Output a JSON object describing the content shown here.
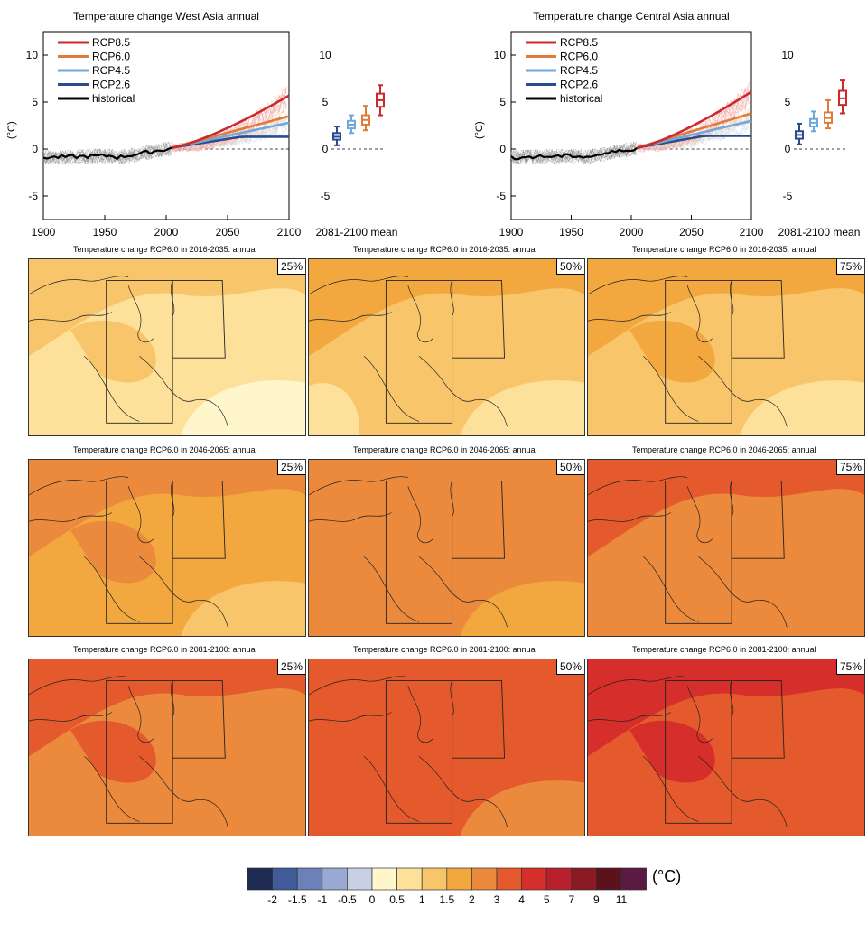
{
  "timeseries": [
    {
      "title": "Temperature change West Asia annual",
      "ylabel": "(°C)",
      "yticks": [
        "10",
        "5",
        "0",
        "-5"
      ],
      "xticks": [
        "1900",
        "1950",
        "2000",
        "2050",
        "2100"
      ],
      "box_label": "2081-2100 mean",
      "legend": [
        "RCP8.5",
        "RCP6.0",
        "RCP4.5",
        "RCP2.6",
        "historical"
      ],
      "end_values": {
        "RCP8.5": 5.7,
        "RCP6.0": 3.5,
        "RCP4.5": 2.8,
        "RCP2.6": 1.3
      },
      "boxes": [
        {
          "name": "RCP2.6",
          "low": 0.4,
          "q1": 1.0,
          "median": 1.3,
          "q3": 1.7,
          "high": 2.4
        },
        {
          "name": "RCP4.5",
          "low": 1.7,
          "q1": 2.2,
          "median": 2.6,
          "q3": 3.0,
          "high": 3.6
        },
        {
          "name": "RCP6.0",
          "low": 2.0,
          "q1": 2.6,
          "median": 3.1,
          "q3": 3.6,
          "high": 4.6
        },
        {
          "name": "RCP8.5",
          "low": 3.6,
          "q1": 4.5,
          "median": 5.2,
          "q3": 5.9,
          "high": 6.8
        }
      ]
    },
    {
      "title": "Temperature change Central Asia annual",
      "ylabel": "(°C)",
      "yticks": [
        "10",
        "5",
        "0",
        "-5"
      ],
      "xticks": [
        "1900",
        "1950",
        "2000",
        "2050",
        "2100"
      ],
      "box_label": "2081-2100 mean",
      "legend": [
        "RCP8.5",
        "RCP6.0",
        "RCP4.5",
        "RCP2.6",
        "historical"
      ],
      "end_values": {
        "RCP8.5": 6.1,
        "RCP6.0": 3.8,
        "RCP4.5": 3.0,
        "RCP2.6": 1.4
      },
      "boxes": [
        {
          "name": "RCP2.6",
          "low": 0.5,
          "q1": 1.1,
          "median": 1.5,
          "q3": 1.9,
          "high": 2.7
        },
        {
          "name": "RCP4.5",
          "low": 1.9,
          "q1": 2.4,
          "median": 2.8,
          "q3": 3.2,
          "high": 4.0
        },
        {
          "name": "RCP6.0",
          "low": 2.2,
          "q1": 2.8,
          "median": 3.3,
          "q3": 3.9,
          "high": 5.2
        },
        {
          "name": "RCP8.5",
          "low": 3.8,
          "q1": 4.7,
          "median": 5.4,
          "q3": 6.2,
          "high": 7.3
        }
      ]
    }
  ],
  "series_colors": {
    "RCP8.5": "#cc2a2a",
    "RCP6.0": "#e07b39",
    "RCP4.5": "#6fa8dc",
    "RCP2.6": "#2c4a8e",
    "historical": "#000000"
  },
  "maps": [
    {
      "title": "Temperature change RCP6.0 in 2016-2035: annual",
      "pct": "25%",
      "level": 0.75
    },
    {
      "title": "Temperature change RCP6.0 in 2016-2035: annual",
      "pct": "50%",
      "level": 1.0
    },
    {
      "title": "Temperature change RCP6.0 in 2016-2035: annual",
      "pct": "75%",
      "level": 1.25
    },
    {
      "title": "Temperature change RCP6.0 in 2046-2065: annual",
      "pct": "25%",
      "level": 1.75
    },
    {
      "title": "Temperature change RCP6.0 in 2046-2065: annual",
      "pct": "50%",
      "level": 2.25
    },
    {
      "title": "Temperature change RCP6.0 in 2046-2065: annual",
      "pct": "75%",
      "level": 2.6
    },
    {
      "title": "Temperature change RCP6.0 in 2081-2100: annual",
      "pct": "25%",
      "level": 2.7
    },
    {
      "title": "Temperature change RCP6.0 in 2081-2100: annual",
      "pct": "50%",
      "level": 3.3
    },
    {
      "title": "Temperature change RCP6.0 in 2081-2100: annual",
      "pct": "75%",
      "level": 3.8
    }
  ],
  "colorbar": {
    "unit": "(°C)",
    "labels": [
      "-2",
      "-1.5",
      "-1",
      "-0.5",
      "0",
      "0.5",
      "1",
      "1.5",
      "2",
      "3",
      "4",
      "5",
      "7",
      "9",
      "11"
    ],
    "colors": [
      "#1d2a52",
      "#3f5b9a",
      "#6c81b7",
      "#98aad1",
      "#c8d1e3",
      "#fff6cc",
      "#fde09a",
      "#f8c56a",
      "#f2a83e",
      "#eb8a3c",
      "#e45a2c",
      "#d62e2a",
      "#b8202e",
      "#8a1a24",
      "#5c121c",
      "#5a1a44"
    ]
  }
}
